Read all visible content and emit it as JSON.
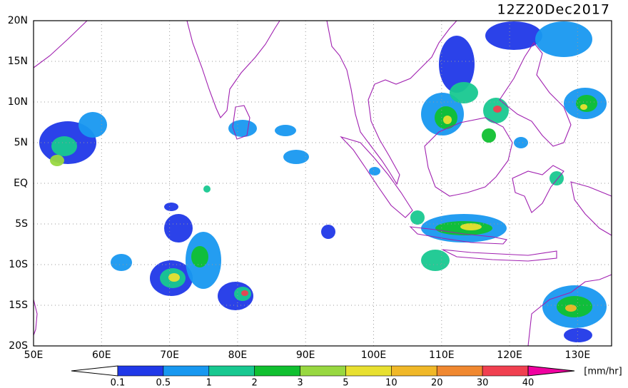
{
  "header": {
    "timestamp": "12Z20Dec2017"
  },
  "map": {
    "lat_labels": [
      "20N",
      "15N",
      "10N",
      "5N",
      "EQ",
      "5S",
      "10S",
      "15S",
      "20S"
    ],
    "lon_labels": [
      "50E",
      "60E",
      "70E",
      "80E",
      "90E",
      "100E",
      "110E",
      "120E",
      "130E"
    ]
  },
  "legend": {
    "ticks": [
      "0.1",
      "0.5",
      "1",
      "2",
      "3",
      "5",
      "10",
      "20",
      "30",
      "40"
    ],
    "colors": [
      "#2038e8",
      "#1898f0",
      "#18c890",
      "#10c030",
      "#98d840",
      "#e8e030",
      "#f0b828",
      "#f08830",
      "#f04050",
      "#f000a0"
    ],
    "unit": "[mm/hr]"
  }
}
